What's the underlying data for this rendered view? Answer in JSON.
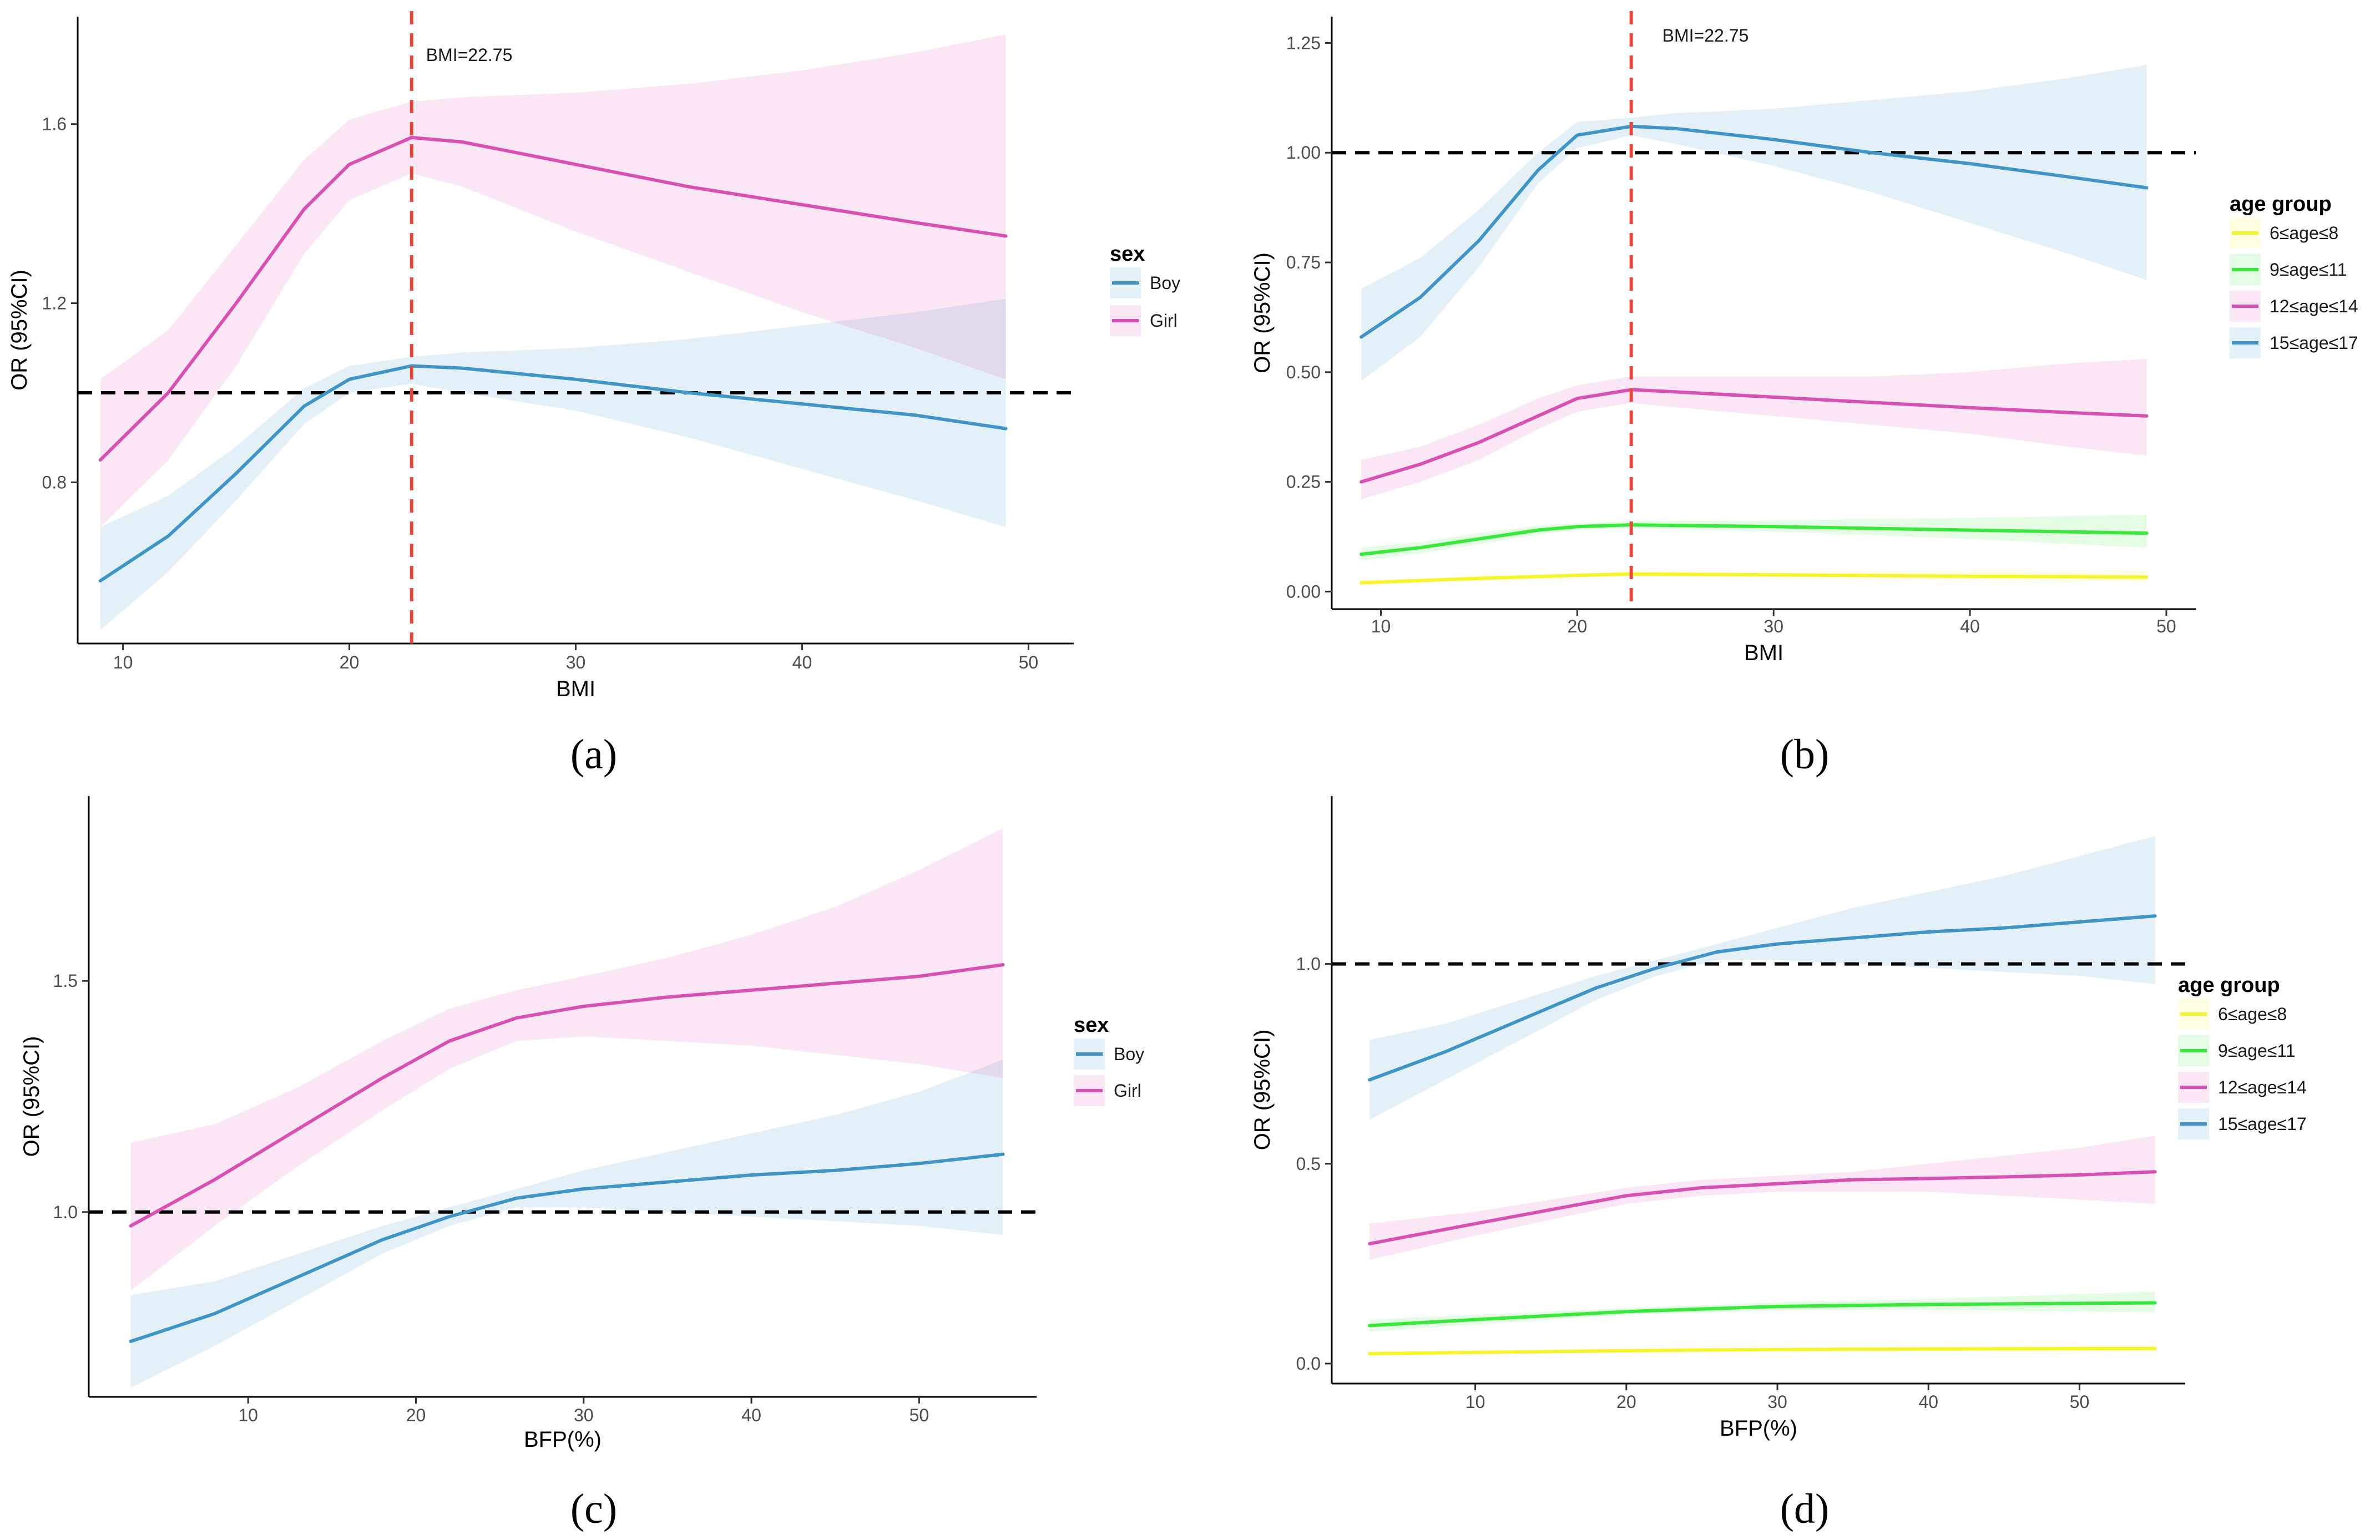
{
  "colors": {
    "boy": "#3f95c7",
    "girl": "#d94fb3",
    "age_6_8": "#f5f52a",
    "age_9_11": "#38e83a",
    "age_12_14": "#d94fb3",
    "age_15_17": "#3f95c7",
    "ref_line": "#000000",
    "vline": "#e8493a"
  },
  "chart_data": [
    {
      "panel": "(a)",
      "type": "line",
      "xlabel": "BMI",
      "ylabel": "OR (95%CI)",
      "xlim": [
        8,
        52
      ],
      "ylim": [
        0.44,
        1.84
      ],
      "xticks": [
        10,
        20,
        30,
        40,
        50
      ],
      "yticks": [
        0.8,
        1.2,
        1.6
      ],
      "ytick_labels": [
        "0.8",
        "1.2",
        "1.6"
      ],
      "hline": 1.0,
      "vline": 22.75,
      "annotation": "BMI=22.75",
      "legend_title": "sex",
      "legend_position": "right",
      "series": [
        {
          "name": "Boy",
          "color_key": "boy",
          "x": [
            9,
            12,
            15,
            18,
            20,
            22.75,
            25,
            30,
            35,
            40,
            45,
            49
          ],
          "y": [
            0.58,
            0.68,
            0.82,
            0.97,
            1.03,
            1.06,
            1.055,
            1.03,
            1.0,
            0.975,
            0.95,
            0.92
          ],
          "lower": [
            0.47,
            0.6,
            0.76,
            0.93,
            1.0,
            1.02,
            1.0,
            0.96,
            0.9,
            0.83,
            0.76,
            0.7
          ],
          "upper": [
            0.7,
            0.77,
            0.88,
            1.01,
            1.06,
            1.08,
            1.09,
            1.1,
            1.12,
            1.15,
            1.18,
            1.21
          ]
        },
        {
          "name": "Girl",
          "color_key": "girl",
          "x": [
            9,
            12,
            15,
            18,
            20,
            22.75,
            25,
            30,
            35,
            40,
            45,
            49
          ],
          "y": [
            0.85,
            1.0,
            1.2,
            1.41,
            1.51,
            1.57,
            1.56,
            1.51,
            1.46,
            1.42,
            1.38,
            1.35
          ],
          "lower": [
            0.7,
            0.85,
            1.06,
            1.31,
            1.43,
            1.49,
            1.46,
            1.36,
            1.27,
            1.18,
            1.1,
            1.03
          ],
          "upper": [
            1.03,
            1.14,
            1.33,
            1.52,
            1.61,
            1.65,
            1.66,
            1.67,
            1.69,
            1.72,
            1.76,
            1.8
          ]
        }
      ]
    },
    {
      "panel": "(b)",
      "type": "line",
      "xlabel": "BMI",
      "ylabel": "OR (95%CI)",
      "xlim": [
        7.5,
        51.5
      ],
      "ylim": [
        -0.04,
        1.31
      ],
      "xticks": [
        10,
        20,
        30,
        40,
        50
      ],
      "yticks": [
        0,
        0.25,
        0.5,
        0.75,
        1.0,
        1.25
      ],
      "ytick_labels": [
        "0.00",
        "0.25",
        "0.50",
        "0.75",
        "1.00",
        "1.25"
      ],
      "hline": 1.0,
      "vline": 22.75,
      "annotation": "BMI=22.75",
      "legend_title": "age  group",
      "legend_position": "right",
      "series": [
        {
          "name": "6≤age≤8",
          "color_key": "age_6_8",
          "x": [
            9,
            15,
            20,
            22.75,
            30,
            40,
            49
          ],
          "y": [
            0.02,
            0.03,
            0.037,
            0.04,
            0.038,
            0.035,
            0.033
          ],
          "lower": [
            0.015,
            0.024,
            0.032,
            0.035,
            0.032,
            0.027,
            0.022
          ],
          "upper": [
            0.026,
            0.036,
            0.042,
            0.045,
            0.045,
            0.045,
            0.046
          ]
        },
        {
          "name": "9≤age≤11",
          "color_key": "age_9_11",
          "x": [
            9,
            12,
            15,
            18,
            20,
            22.75,
            30,
            40,
            49
          ],
          "y": [
            0.085,
            0.1,
            0.12,
            0.14,
            0.148,
            0.152,
            0.148,
            0.14,
            0.133
          ],
          "lower": [
            0.07,
            0.087,
            0.108,
            0.13,
            0.14,
            0.144,
            0.137,
            0.12,
            0.1
          ],
          "upper": [
            0.1,
            0.113,
            0.133,
            0.15,
            0.156,
            0.16,
            0.162,
            0.168,
            0.175
          ]
        },
        {
          "name": "12≤age≤14",
          "color_key": "age_12_14",
          "x": [
            9,
            12,
            15,
            18,
            20,
            22.75,
            25,
            30,
            35,
            40,
            45,
            49
          ],
          "y": [
            0.25,
            0.29,
            0.34,
            0.4,
            0.44,
            0.46,
            0.455,
            0.443,
            0.431,
            0.419,
            0.408,
            0.4
          ],
          "lower": [
            0.21,
            0.25,
            0.3,
            0.37,
            0.41,
            0.43,
            0.42,
            0.4,
            0.38,
            0.36,
            0.33,
            0.31
          ],
          "upper": [
            0.3,
            0.33,
            0.38,
            0.44,
            0.47,
            0.49,
            0.49,
            0.49,
            0.49,
            0.5,
            0.52,
            0.53
          ]
        },
        {
          "name": "15≤age≤17",
          "color_key": "age_15_17",
          "x": [
            9,
            12,
            15,
            18,
            20,
            22.75,
            25,
            30,
            35,
            40,
            45,
            49
          ],
          "y": [
            0.58,
            0.67,
            0.8,
            0.96,
            1.04,
            1.06,
            1.055,
            1.03,
            1.0,
            0.975,
            0.945,
            0.92
          ],
          "lower": [
            0.48,
            0.58,
            0.74,
            0.93,
            1.01,
            1.04,
            1.02,
            0.97,
            0.91,
            0.84,
            0.77,
            0.71
          ],
          "upper": [
            0.69,
            0.76,
            0.87,
            1.0,
            1.07,
            1.08,
            1.09,
            1.1,
            1.12,
            1.14,
            1.17,
            1.2
          ]
        }
      ]
    },
    {
      "panel": "(c)",
      "type": "line",
      "xlabel": "BFP(%)",
      "ylabel": "OR (95%CI)",
      "xlim": [
        0.5,
        57
      ],
      "ylim": [
        0.6,
        1.9
      ],
      "xticks": [
        10,
        20,
        30,
        40,
        50
      ],
      "yticks": [
        1.0,
        1.5
      ],
      "ytick_labels": [
        "1.0",
        "1.5"
      ],
      "hline": 1.0,
      "legend_title": "sex",
      "legend_position": "right",
      "series": [
        {
          "name": "Boy",
          "color_key": "boy",
          "x": [
            3,
            8,
            13,
            18,
            22,
            26,
            30,
            35,
            40,
            45,
            50,
            55
          ],
          "y": [
            0.72,
            0.78,
            0.86,
            0.94,
            0.99,
            1.03,
            1.05,
            1.065,
            1.08,
            1.09,
            1.105,
            1.125
          ],
          "lower": [
            0.62,
            0.71,
            0.81,
            0.91,
            0.97,
            1.01,
            1.01,
            1.0,
            0.99,
            0.98,
            0.97,
            0.95
          ],
          "upper": [
            0.82,
            0.85,
            0.91,
            0.97,
            1.01,
            1.05,
            1.09,
            1.13,
            1.17,
            1.21,
            1.26,
            1.33
          ]
        },
        {
          "name": "Girl",
          "color_key": "girl",
          "x": [
            3,
            8,
            13,
            18,
            22,
            26,
            30,
            35,
            40,
            45,
            50,
            55
          ],
          "y": [
            0.97,
            1.07,
            1.18,
            1.29,
            1.37,
            1.42,
            1.445,
            1.465,
            1.48,
            1.495,
            1.51,
            1.535
          ],
          "lower": [
            0.83,
            0.97,
            1.1,
            1.22,
            1.31,
            1.37,
            1.38,
            1.37,
            1.36,
            1.34,
            1.32,
            1.29
          ],
          "upper": [
            1.15,
            1.19,
            1.27,
            1.37,
            1.44,
            1.48,
            1.51,
            1.55,
            1.6,
            1.66,
            1.74,
            1.83
          ]
        }
      ]
    },
    {
      "panel": "(d)",
      "type": "line",
      "xlabel": "BFP(%)",
      "ylabel": "OR (95%CI)",
      "xlim": [
        0.5,
        57
      ],
      "ylim": [
        -0.05,
        1.42
      ],
      "xticks": [
        10,
        20,
        30,
        40,
        50
      ],
      "yticks": [
        0,
        0.5,
        1.0
      ],
      "ytick_labels": [
        "0.0",
        "0.5",
        "1.0"
      ],
      "hline": 1.0,
      "legend_title": "age  group",
      "legend_position": "right",
      "series": [
        {
          "name": "6≤age≤8",
          "color_key": "age_6_8",
          "x": [
            3,
            15,
            25,
            35,
            45,
            55
          ],
          "y": [
            0.025,
            0.03,
            0.034,
            0.036,
            0.037,
            0.038
          ],
          "lower": [
            0.02,
            0.026,
            0.03,
            0.031,
            0.03,
            0.029
          ],
          "upper": [
            0.03,
            0.035,
            0.038,
            0.041,
            0.043,
            0.046
          ]
        },
        {
          "name": "9≤age≤11",
          "color_key": "age_9_11",
          "x": [
            3,
            10,
            20,
            30,
            40,
            55
          ],
          "y": [
            0.095,
            0.11,
            0.13,
            0.143,
            0.148,
            0.152
          ],
          "lower": [
            0.08,
            0.098,
            0.122,
            0.133,
            0.135,
            0.128
          ],
          "upper": [
            0.11,
            0.122,
            0.139,
            0.153,
            0.162,
            0.18
          ]
        },
        {
          "name": "12≤age≤14",
          "color_key": "age_12_14",
          "x": [
            3,
            10,
            15,
            20,
            25,
            30,
            35,
            40,
            45,
            50,
            55
          ],
          "y": [
            0.3,
            0.35,
            0.385,
            0.42,
            0.44,
            0.45,
            0.46,
            0.463,
            0.467,
            0.472,
            0.48
          ],
          "lower": [
            0.26,
            0.32,
            0.36,
            0.4,
            0.42,
            0.43,
            0.43,
            0.43,
            0.42,
            0.41,
            0.4
          ],
          "upper": [
            0.35,
            0.38,
            0.41,
            0.44,
            0.46,
            0.47,
            0.48,
            0.5,
            0.52,
            0.54,
            0.57
          ]
        },
        {
          "name": "15≤age≤17",
          "color_key": "age_15_17",
          "x": [
            3,
            8,
            13,
            18,
            22,
            26,
            30,
            35,
            40,
            45,
            50,
            55
          ],
          "y": [
            0.71,
            0.78,
            0.86,
            0.94,
            0.99,
            1.03,
            1.05,
            1.065,
            1.08,
            1.09,
            1.105,
            1.12
          ],
          "lower": [
            0.61,
            0.71,
            0.81,
            0.91,
            0.97,
            1.01,
            1.01,
            1.0,
            0.99,
            0.98,
            0.97,
            0.95
          ],
          "upper": [
            0.81,
            0.85,
            0.91,
            0.97,
            1.01,
            1.05,
            1.09,
            1.14,
            1.18,
            1.22,
            1.27,
            1.32
          ]
        }
      ]
    }
  ]
}
